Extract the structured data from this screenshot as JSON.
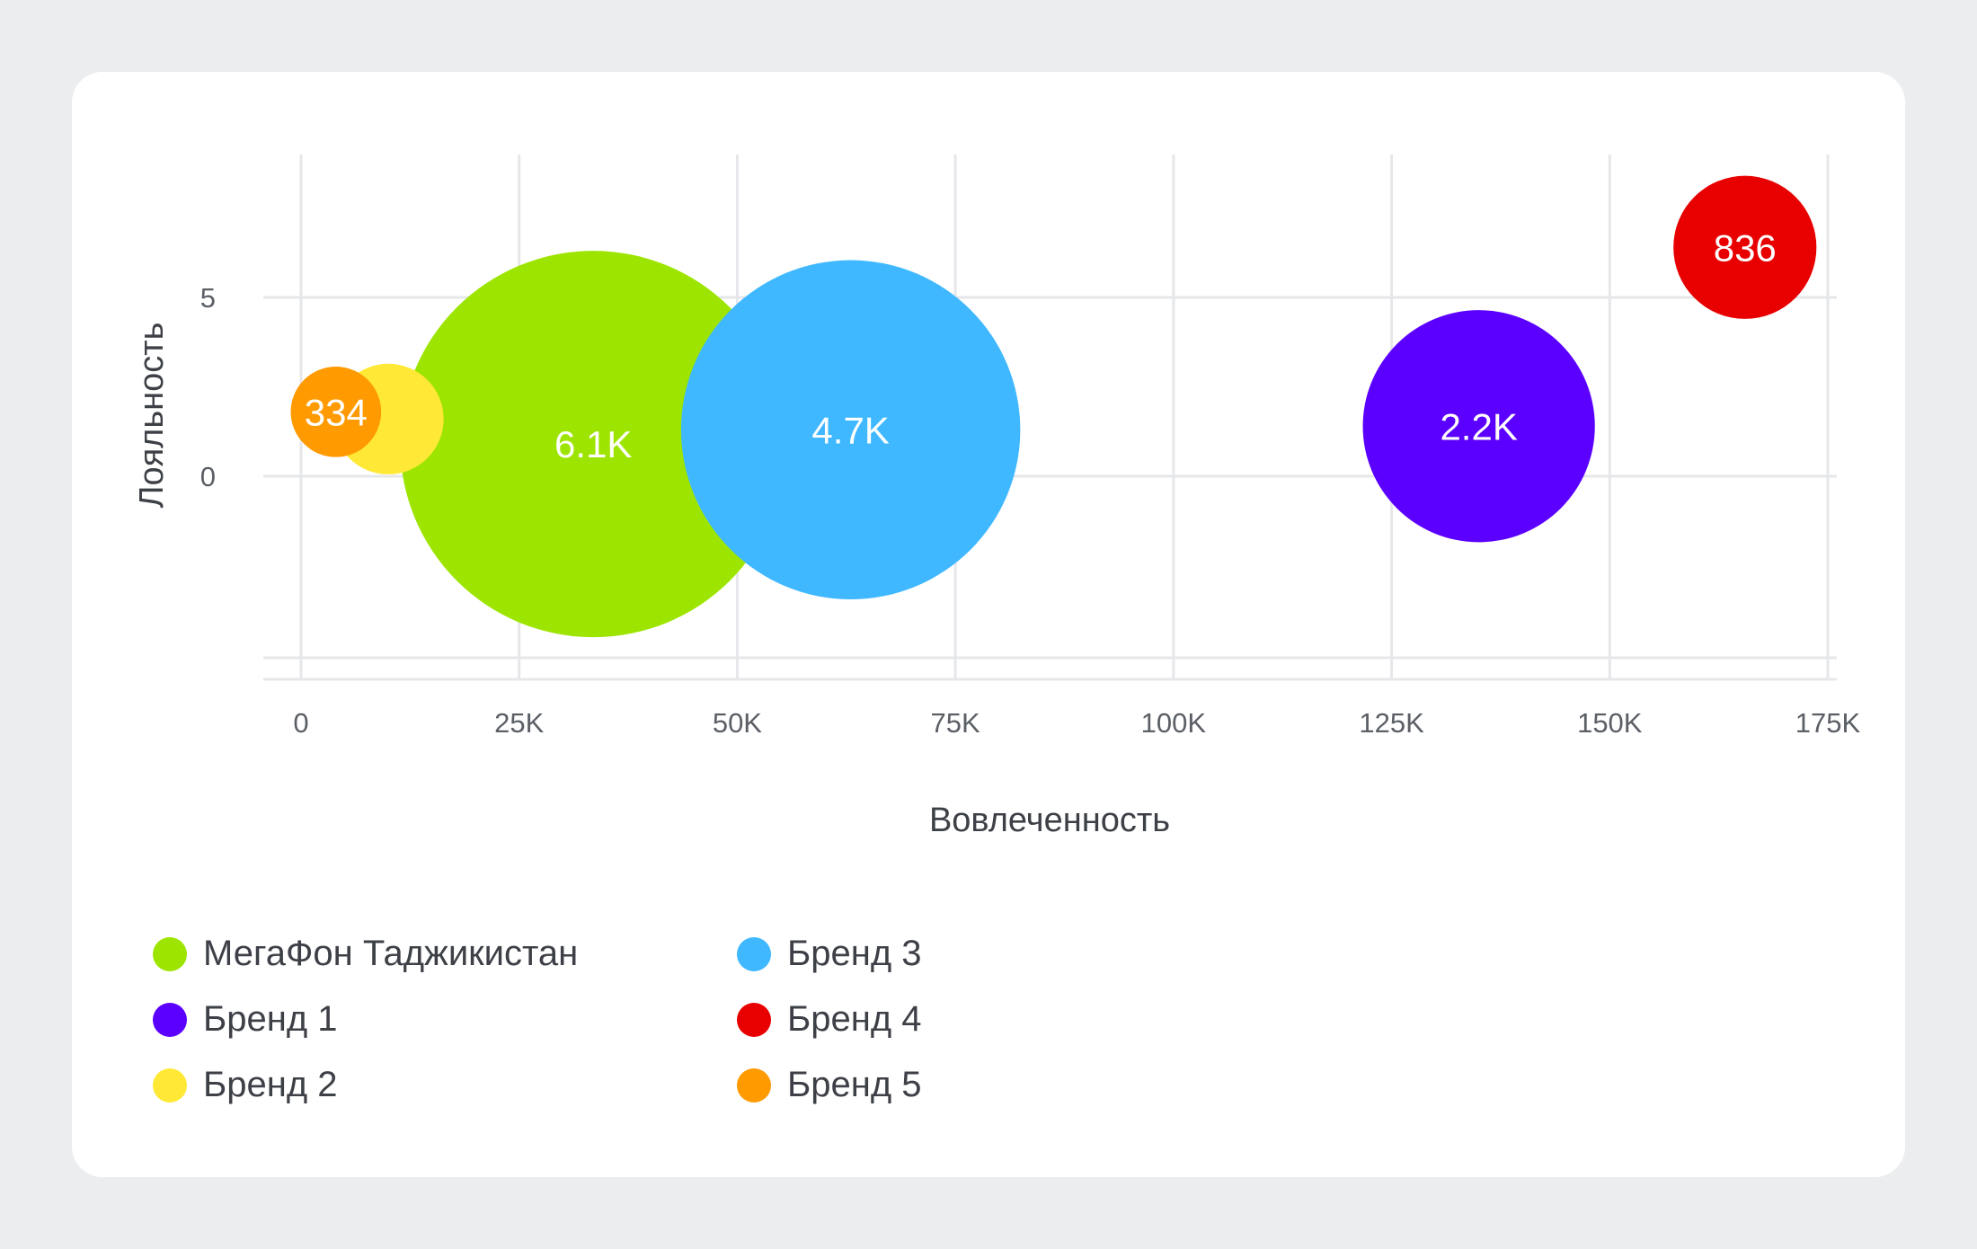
{
  "chart_data": {
    "type": "bubble",
    "xlabel": "Вовлеченность",
    "ylabel": "Лояльность",
    "xlim": [
      0,
      175000
    ],
    "ylim": [
      -5,
      8
    ],
    "x_ticks": [
      {
        "value": 0,
        "label": "0"
      },
      {
        "value": 25000,
        "label": "25K"
      },
      {
        "value": 50000,
        "label": "50K"
      },
      {
        "value": 75000,
        "label": "75K"
      },
      {
        "value": 100000,
        "label": "100K"
      },
      {
        "value": 125000,
        "label": "125K"
      },
      {
        "value": 150000,
        "label": "150K"
      },
      {
        "value": 175000,
        "label": "175K"
      }
    ],
    "y_ticks": [
      {
        "value": 0,
        "label": "0"
      },
      {
        "value": 5,
        "label": "5"
      }
    ],
    "grid": true,
    "legend_position": "bottom-left",
    "series": [
      {
        "name": "МегаФон Таджикистан",
        "color": "#9DE500",
        "x": 33500,
        "y": 0.9,
        "size": 6100,
        "label": "6.1K"
      },
      {
        "name": "Бренд 3",
        "color": "#3FB8FF",
        "x": 63000,
        "y": 1.3,
        "size": 4700,
        "label": "4.7K"
      },
      {
        "name": "Бренд 1",
        "color": "#5B00FF",
        "x": 135000,
        "y": 1.4,
        "size": 2200,
        "label": "2.2K"
      },
      {
        "name": "Бренд 4",
        "color": "#E80000",
        "x": 165500,
        "y": 6.4,
        "size": 836,
        "label": "836"
      },
      {
        "name": "Бренд 2",
        "color": "#FFE936",
        "x": 10000,
        "y": 1.6,
        "size": 500,
        "label": ""
      },
      {
        "name": "Бренд 5",
        "color": "#FF9A00",
        "x": 4000,
        "y": 1.8,
        "size": 334,
        "label": "334"
      }
    ]
  },
  "legend": {
    "items": [
      {
        "label": "МегаФон Таджикистан",
        "color": "#9DE500"
      },
      {
        "label": "Бренд 3",
        "color": "#3FB8FF"
      },
      {
        "label": "Бренд 1",
        "color": "#5B00FF"
      },
      {
        "label": "Бренд 4",
        "color": "#E80000"
      },
      {
        "label": "Бренд 2",
        "color": "#FFE936"
      },
      {
        "label": "Бренд 5",
        "color": "#FF9A00"
      }
    ]
  }
}
